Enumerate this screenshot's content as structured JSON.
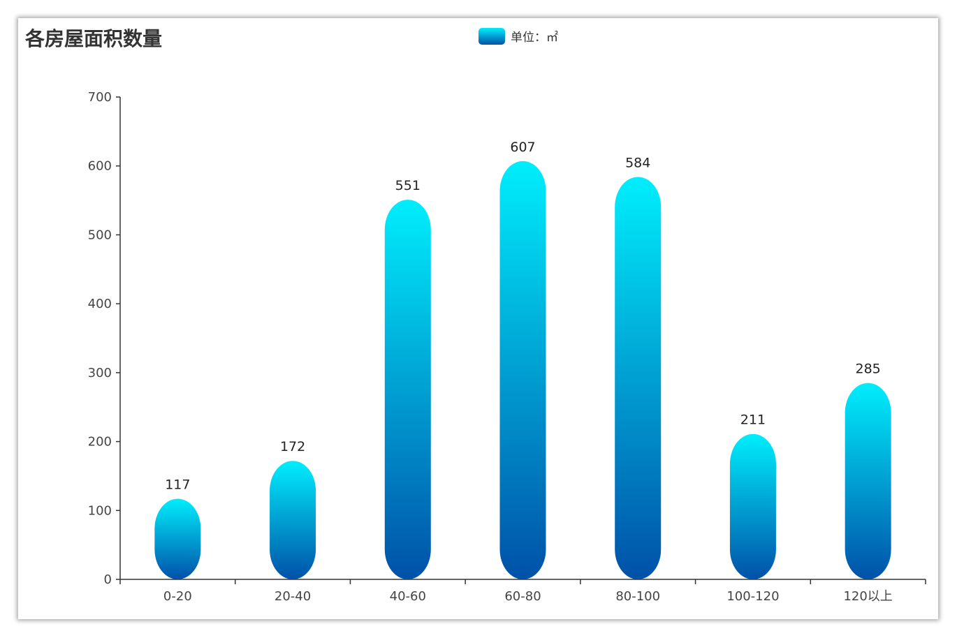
{
  "chart_data": {
    "type": "bar",
    "title": "各房屋面积数量",
    "legend": {
      "label": "单位：㎡",
      "position": "top-center"
    },
    "categories": [
      "0-20",
      "20-40",
      "40-60",
      "60-80",
      "80-100",
      "100-120",
      "120以上"
    ],
    "series": [
      {
        "name": "单位：㎡",
        "values": [
          117,
          172,
          551,
          607,
          584,
          211,
          285
        ]
      }
    ],
    "ylim": [
      0,
      700
    ],
    "yticks": [
      0,
      100,
      200,
      300,
      400,
      500,
      600,
      700
    ],
    "xlabel": "",
    "ylabel": "",
    "grid": false,
    "colors": {
      "bar_top": "#00eefc",
      "bar_bottom": "#0051a8"
    }
  }
}
